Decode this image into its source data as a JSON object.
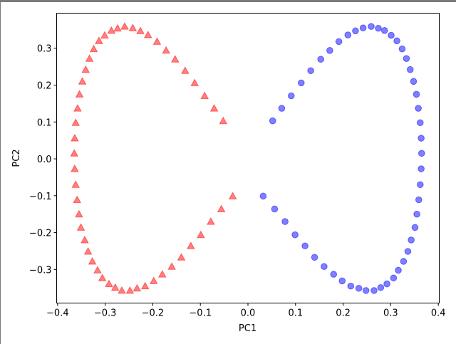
{
  "chart_data": {
    "type": "scatter",
    "title": "",
    "xlabel": "PC1",
    "ylabel": "PC2",
    "xlim": [
      -0.402,
      0.402
    ],
    "ylim": [
      -0.391,
      0.395
    ],
    "xticks": [
      -0.4,
      -0.3,
      -0.2,
      -0.1,
      0.0,
      0.1,
      0.2,
      0.3,
      0.4
    ],
    "xtick_labels": [
      "−0.4",
      "−0.3",
      "−0.2",
      "−0.1",
      "0.0",
      "0.1",
      "0.2",
      "0.3",
      "0.4"
    ],
    "yticks": [
      -0.3,
      -0.2,
      -0.1,
      0.0,
      0.1,
      0.2,
      0.3
    ],
    "ytick_labels": [
      "−0.3",
      "−0.2",
      "−0.1",
      "0.0",
      "0.1",
      "0.2",
      "0.3"
    ],
    "grid": false,
    "series": [
      {
        "marker": "triangle",
        "color": "#ff0000",
        "alpha": 0.5,
        "x": [
          -0.052,
          -0.071,
          -0.091,
          -0.112,
          -0.132,
          -0.153,
          -0.172,
          -0.191,
          -0.21,
          -0.226,
          -0.242,
          -0.259,
          -0.274,
          -0.287,
          -0.301,
          -0.313,
          -0.324,
          -0.333,
          -0.341,
          -0.348,
          -0.354,
          -0.358,
          -0.362,
          -0.364,
          -0.365,
          -0.364,
          -0.362,
          -0.359,
          -0.355,
          -0.351,
          -0.343,
          -0.336,
          -0.327,
          -0.316,
          -0.306,
          -0.292,
          -0.279,
          -0.265,
          -0.248,
          -0.233,
          -0.216,
          -0.198,
          -0.18,
          -0.16,
          -0.14,
          -0.12,
          -0.099,
          -0.078,
          -0.056,
          -0.032
        ],
        "y": [
          0.103,
          0.137,
          0.171,
          0.206,
          0.239,
          0.27,
          0.294,
          0.318,
          0.336,
          0.347,
          0.355,
          0.359,
          0.354,
          0.348,
          0.335,
          0.32,
          0.298,
          0.272,
          0.242,
          0.21,
          0.175,
          0.137,
          0.098,
          0.056,
          0.015,
          -0.027,
          -0.07,
          -0.111,
          -0.15,
          -0.186,
          -0.22,
          -0.251,
          -0.278,
          -0.302,
          -0.323,
          -0.339,
          -0.349,
          -0.357,
          -0.357,
          -0.351,
          -0.345,
          -0.331,
          -0.313,
          -0.292,
          -0.267,
          -0.236,
          -0.206,
          -0.17,
          -0.136,
          -0.101
        ]
      },
      {
        "marker": "circle",
        "color": "#0000ff",
        "alpha": 0.5,
        "x": [
          0.052,
          0.071,
          0.091,
          0.112,
          0.132,
          0.153,
          0.172,
          0.191,
          0.21,
          0.226,
          0.242,
          0.259,
          0.274,
          0.287,
          0.301,
          0.313,
          0.324,
          0.333,
          0.341,
          0.348,
          0.354,
          0.358,
          0.362,
          0.364,
          0.365,
          0.364,
          0.362,
          0.359,
          0.355,
          0.351,
          0.343,
          0.336,
          0.327,
          0.316,
          0.306,
          0.292,
          0.279,
          0.265,
          0.248,
          0.233,
          0.216,
          0.198,
          0.18,
          0.16,
          0.14,
          0.12,
          0.099,
          0.078,
          0.056,
          0.032
        ],
        "y": [
          0.103,
          0.137,
          0.171,
          0.206,
          0.239,
          0.27,
          0.294,
          0.318,
          0.336,
          0.347,
          0.355,
          0.359,
          0.354,
          0.348,
          0.335,
          0.32,
          0.298,
          0.272,
          0.242,
          0.21,
          0.175,
          0.137,
          0.098,
          0.056,
          0.015,
          -0.027,
          -0.07,
          -0.111,
          -0.15,
          -0.186,
          -0.22,
          -0.251,
          -0.278,
          -0.302,
          -0.323,
          -0.339,
          -0.349,
          -0.357,
          -0.357,
          -0.351,
          -0.345,
          -0.331,
          -0.313,
          -0.292,
          -0.267,
          -0.236,
          -0.206,
          -0.17,
          -0.136,
          -0.101
        ]
      }
    ]
  }
}
